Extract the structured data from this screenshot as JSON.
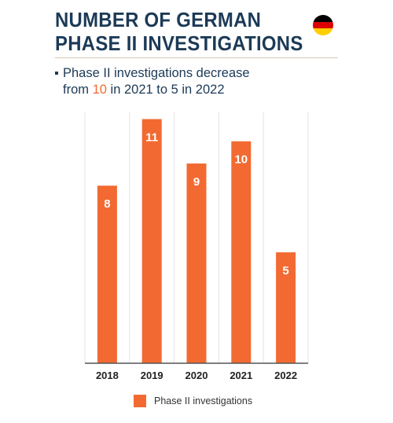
{
  "header": {
    "title_line1": "NUMBER OF GERMAN",
    "title_line2": "PHASE II INVESTIGATIONS",
    "flag_icon": "germany-flag-icon",
    "flag_colors": [
      "#000000",
      "#dd0000",
      "#ffce00"
    ]
  },
  "subtitle": {
    "line1": "Phase II investigations decrease",
    "line2_from": "from",
    "line2_highlight": "10",
    "line2_rest": "in 2021 to 5 in 2022"
  },
  "colors": {
    "title": "#1c3a57",
    "bar": "#f26a32",
    "grid": "#e3e3e3",
    "axis": "#555555"
  },
  "chart_data": {
    "type": "bar",
    "categories": [
      "2018",
      "2019",
      "2020",
      "2021",
      "2022"
    ],
    "series": [
      {
        "name": "Phase II investigations",
        "values": [
          8,
          11,
          9,
          10,
          5
        ]
      }
    ],
    "ylim": [
      0,
      11.3
    ],
    "grid": "vertical-lines",
    "legend": "bottom-center",
    "data_labels": "inside-top"
  },
  "legend": {
    "label": "Phase II investigations"
  }
}
